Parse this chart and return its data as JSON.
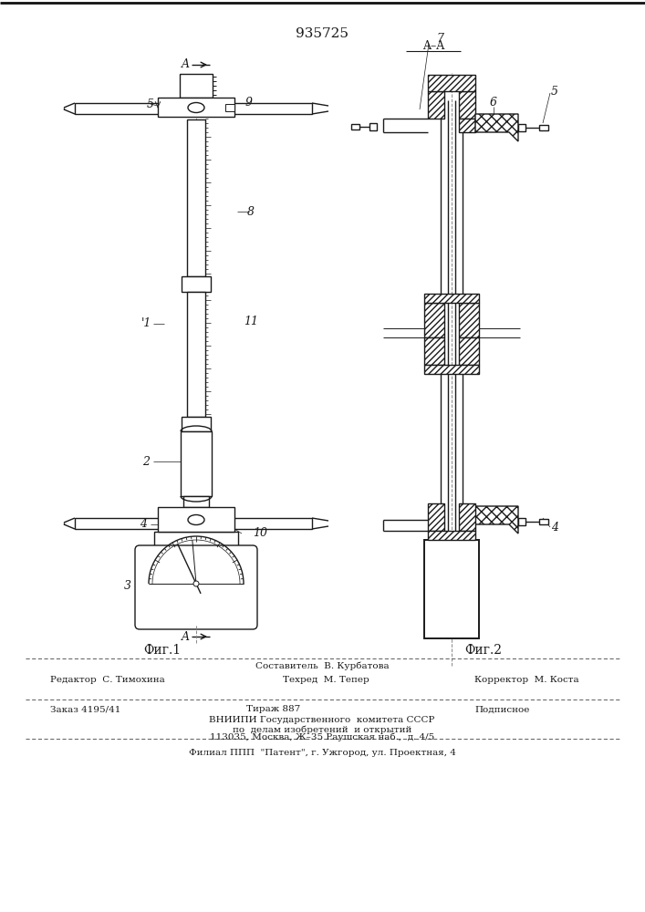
{
  "title": "935725",
  "fig1_label": "Фиг.1",
  "fig2_label": "Фиг.2",
  "footer_line1_left": "Редактор  С. Тимохина",
  "footer_line1_center": "Техред  М. Тепер",
  "footer_line1_right": "Корректор  М. Коста",
  "footer_compose": "Составитель  В. Курбатова",
  "footer_line2_left": "Заказ 4195/41",
  "footer_line2_center": "Тираж 887",
  "footer_line2_right": "Подписное",
  "footer_line3": "ВНИИПИ Государственного  комитета СССР",
  "footer_line4": "по  делам изобретений  и открытий",
  "footer_line5": "113035, Москва, Ж–35 Раушская наб.,  д. 4/5",
  "footer_line6": "Филиал ППП  \"Патент\", г. Ужгород, ул. Проектная, 4",
  "bg_color": "#ffffff",
  "line_color": "#1a1a1a"
}
